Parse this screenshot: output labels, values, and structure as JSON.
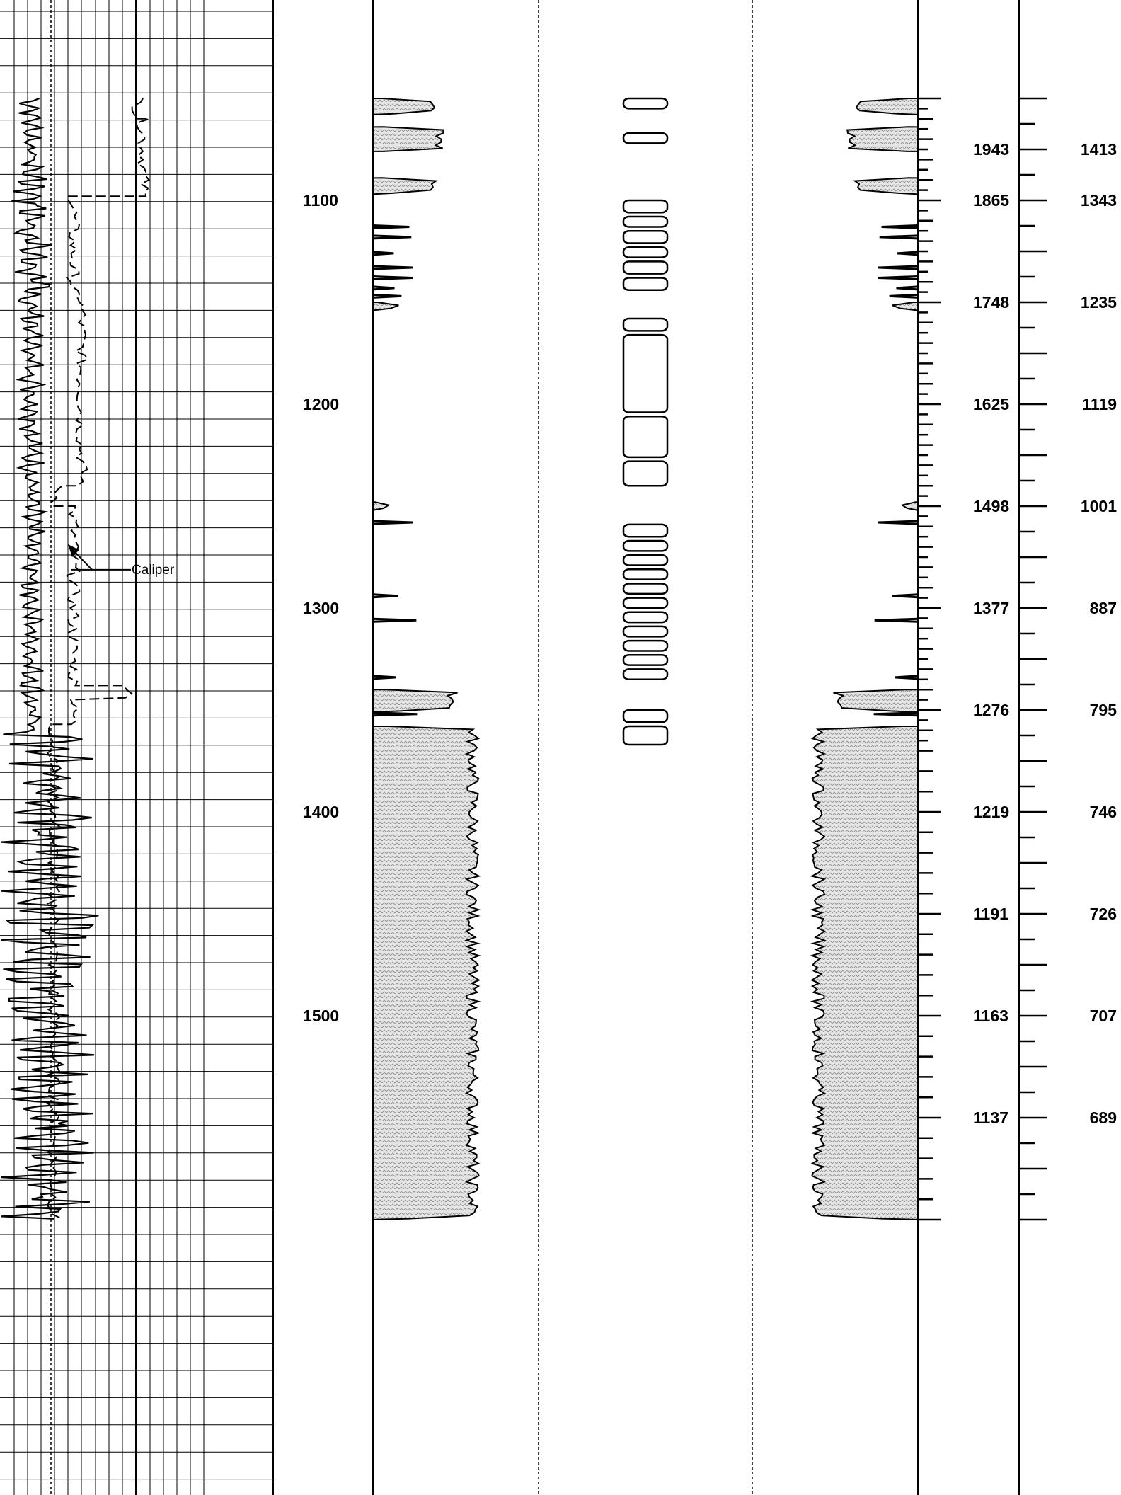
{
  "chart_data": {
    "type": "line",
    "title": "",
    "depth_range": [
      1050,
      1600
    ],
    "depth_ticks": [
      {
        "depth": 1100,
        "label": "1100"
      },
      {
        "depth": 1200,
        "label": "1200"
      },
      {
        "depth": 1300,
        "label": "1300"
      },
      {
        "depth": 1400,
        "label": "1400"
      },
      {
        "depth": 1500,
        "label": "1500"
      }
    ],
    "scale_a_labels": [
      {
        "depth": 1075,
        "label": "1943"
      },
      {
        "depth": 1100,
        "label": "1865"
      },
      {
        "depth": 1150,
        "label": "1748"
      },
      {
        "depth": 1200,
        "label": "1625"
      },
      {
        "depth": 1250,
        "label": "1498"
      },
      {
        "depth": 1300,
        "label": "1377"
      },
      {
        "depth": 1350,
        "label": "1276"
      },
      {
        "depth": 1400,
        "label": "1219"
      },
      {
        "depth": 1450,
        "label": "1191"
      },
      {
        "depth": 1500,
        "label": "1163"
      },
      {
        "depth": 1550,
        "label": "1137"
      }
    ],
    "scale_b_labels": [
      {
        "depth": 1075,
        "label": "1413"
      },
      {
        "depth": 1100,
        "label": "1343"
      },
      {
        "depth": 1150,
        "label": "1235"
      },
      {
        "depth": 1200,
        "label": "1119"
      },
      {
        "depth": 1250,
        "label": "1001"
      },
      {
        "depth": 1300,
        "label": "887"
      },
      {
        "depth": 1350,
        "label": "795"
      },
      {
        "depth": 1400,
        "label": "746"
      },
      {
        "depth": 1450,
        "label": "726"
      },
      {
        "depth": 1500,
        "label": "707"
      },
      {
        "depth": 1550,
        "label": "689"
      }
    ],
    "annotation": {
      "text": "Caliper",
      "depth": 1268
    },
    "lithology_intervals": [
      {
        "top": 1050,
        "base": 1058,
        "amp": 0.45
      },
      {
        "top": 1064,
        "base": 1076,
        "amp": 0.5
      },
      {
        "top": 1089,
        "base": 1097,
        "amp": 0.45
      },
      {
        "top": 1150,
        "base": 1154,
        "amp": 0.2
      },
      {
        "top": 1248,
        "base": 1252,
        "amp": 0.12
      },
      {
        "top": 1340,
        "base": 1351,
        "amp": 0.6
      },
      {
        "top": 1358,
        "base": 1600,
        "amp": 0.75
      }
    ],
    "core_pieces": [
      {
        "top": 1050,
        "base": 1055
      },
      {
        "top": 1067,
        "base": 1072
      },
      {
        "top": 1100,
        "base": 1106
      },
      {
        "top": 1108,
        "base": 1113
      },
      {
        "top": 1115,
        "base": 1121
      },
      {
        "top": 1123,
        "base": 1128
      },
      {
        "top": 1130,
        "base": 1136
      },
      {
        "top": 1138,
        "base": 1144
      },
      {
        "top": 1158,
        "base": 1164
      },
      {
        "top": 1166,
        "base": 1204
      },
      {
        "top": 1206,
        "base": 1226
      },
      {
        "top": 1228,
        "base": 1240
      },
      {
        "top": 1259,
        "base": 1265
      },
      {
        "top": 1267,
        "base": 1272
      },
      {
        "top": 1274,
        "base": 1279
      },
      {
        "top": 1281,
        "base": 1286
      },
      {
        "top": 1288,
        "base": 1293
      },
      {
        "top": 1295,
        "base": 1300
      },
      {
        "top": 1302,
        "base": 1307
      },
      {
        "top": 1309,
        "base": 1314
      },
      {
        "top": 1316,
        "base": 1321
      },
      {
        "top": 1323,
        "base": 1328
      },
      {
        "top": 1330,
        "base": 1335
      },
      {
        "top": 1350,
        "base": 1356
      },
      {
        "top": 1358,
        "base": 1367
      }
    ],
    "caliper_segments": [
      {
        "from": 1050,
        "to": 1060,
        "value": 0.85
      },
      {
        "from": 1060,
        "to": 1098,
        "value": 0.88
      },
      {
        "from": 1098,
        "to": 1148,
        "value": 0.45
      },
      {
        "from": 1148,
        "to": 1240,
        "value": 0.5
      },
      {
        "from": 1240,
        "to": 1250,
        "value": 0.35
      },
      {
        "from": 1250,
        "to": 1338,
        "value": 0.45
      },
      {
        "from": 1338,
        "to": 1345,
        "value": 0.8
      },
      {
        "from": 1345,
        "to": 1357,
        "value": 0.45
      },
      {
        "from": 1357,
        "to": 1600,
        "value": 0.33
      }
    ]
  }
}
